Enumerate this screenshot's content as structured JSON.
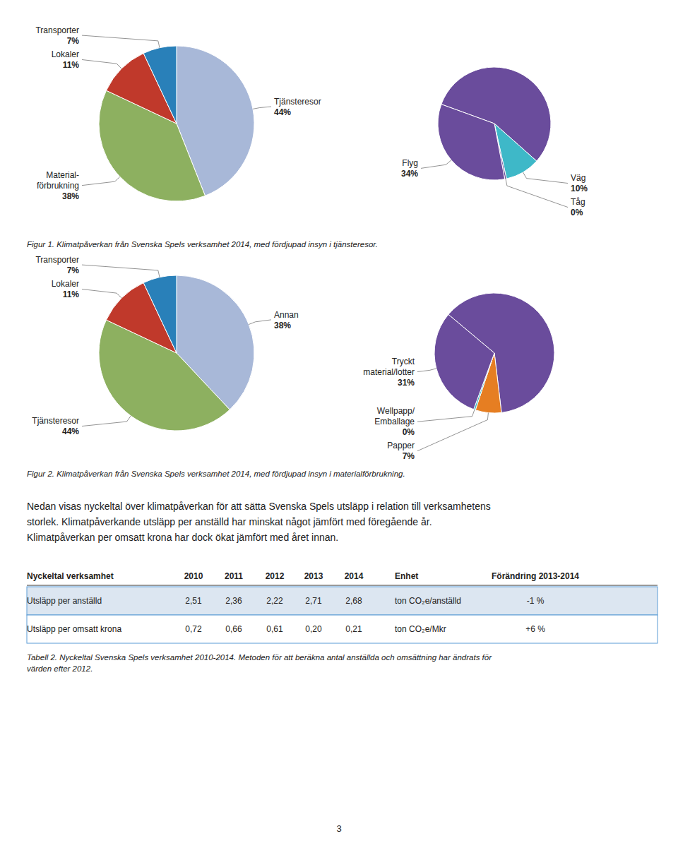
{
  "chart_data": [
    {
      "type": "pie",
      "categories": [
        "Tjänsteresor",
        "Material-\nförbrukning",
        "Lokaler",
        "Transporter"
      ],
      "values": [
        44,
        38,
        11,
        7
      ],
      "value_labels": [
        "44%",
        "38%",
        "11%",
        "7%"
      ],
      "colors": [
        "#a8b8d8",
        "#8db060",
        "#c0392b",
        "#2980b9"
      ],
      "data_labels": true,
      "caption": "Figur 1. Klimatpåverkan från Svenska Spels verksamhet 2014, med fördjupad insyn i tjänsteresor."
    },
    {
      "type": "pie",
      "categories": [
        null,
        "Väg",
        "Tåg",
        "Flyg"
      ],
      "values": [
        56,
        10,
        0.5,
        33.5
      ],
      "value_labels": [
        null,
        "10%",
        "0%",
        "34%"
      ],
      "colors": [
        "#6a4c9c",
        "#3eb8c8",
        "#6a4c9c",
        "#6a4c9c"
      ],
      "data_labels": true
    },
    {
      "type": "pie",
      "categories": [
        "Annan",
        "Tjänsteresor",
        "Lokaler",
        "Transporter"
      ],
      "values": [
        38,
        44,
        11,
        7
      ],
      "value_labels": [
        "38%",
        "44%",
        "11%",
        "7%"
      ],
      "colors": [
        "#a8b8d8",
        "#8db060",
        "#c0392b",
        "#2980b9"
      ],
      "data_labels": true,
      "caption": "Figur 2. Klimatpåverkan från Svenska Spels verksamhet 2014, med fördjupad insyn i materialförbrukning."
    },
    {
      "type": "pie",
      "categories": [
        null,
        "Papper",
        "Wellpapp/\nEmballage",
        "Tryckt\nmaterial/lotter"
      ],
      "values": [
        62,
        7,
        0.5,
        30.5
      ],
      "value_labels": [
        null,
        "7%",
        "0%",
        "31%"
      ],
      "colors": [
        "#6a4c9c",
        "#e67e22",
        "#3eb8c8",
        "#6a4c9c"
      ],
      "data_labels": true
    }
  ],
  "paragraph": "Nedan visas nyckeltal över klimatpåverkan för att sätta Svenska Spels utsläpp i relation till verksamhetens\nstorlek. Klimatpåverkande utsläpp per anställd har minskat något jämfört med föregående år.\nKlimatpåverkan per omsatt krona har dock ökat jämfört med året innan.",
  "table": {
    "header": [
      "Nyckeltal verksamhet",
      "2010",
      "2011",
      "2012",
      "2013",
      "2014",
      "Enhet",
      "Förändring 2013-2014"
    ],
    "rows": [
      [
        "Utsläpp per anställd",
        "2,51",
        "2,36",
        "2,22",
        "2,71",
        "2,68",
        "ton CO₂e/anställd",
        "-1 %"
      ],
      [
        "Utsläpp per omsatt krona",
        "0,72",
        "0,66",
        "0,61",
        "0,20",
        "0,21",
        "ton CO₂e/Mkr",
        "+6 %"
      ]
    ],
    "caption": "Tabell 2. Nyckeltal Svenska Spels verksamhet 2010-2014. Metoden för att beräkna antal anställda och omsättning har ändrats för\nvärden efter 2012."
  },
  "page_number": "3"
}
